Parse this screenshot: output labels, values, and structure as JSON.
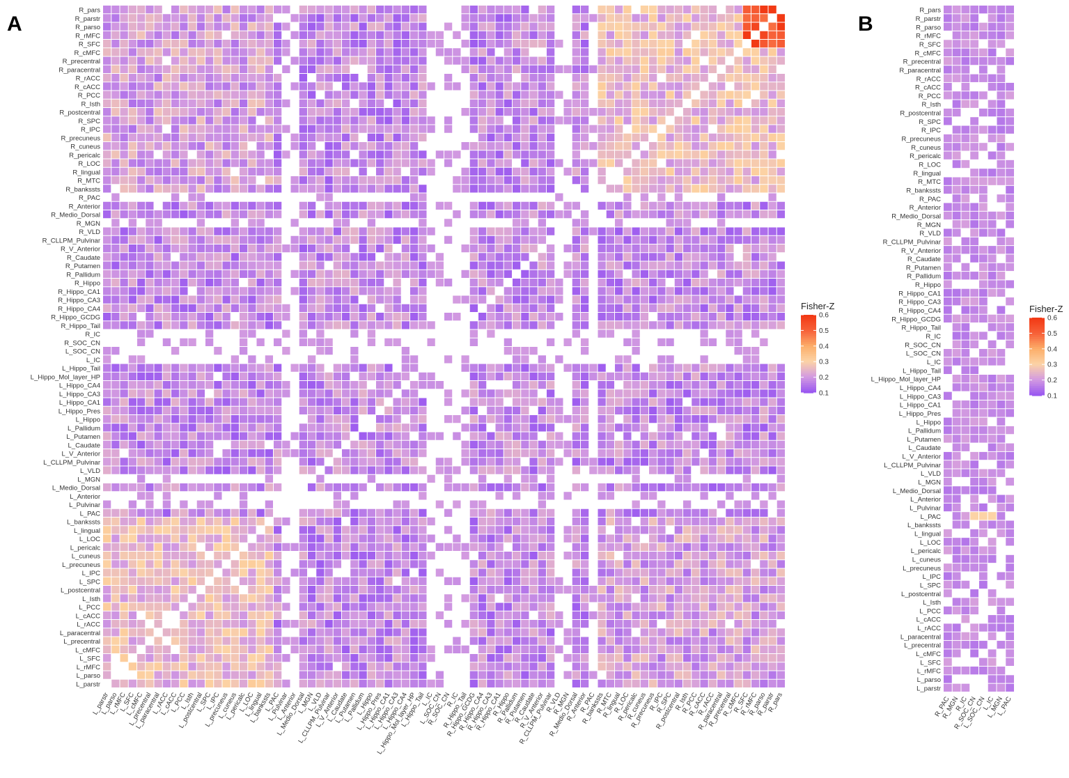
{
  "figure": {
    "panel_a_label": "A",
    "panel_b_label": "B"
  },
  "chart_data": [
    {
      "panel": "A",
      "type": "heatmap",
      "title": "",
      "xlabel": "",
      "ylabel": "",
      "color_scale": {
        "title": "Fisher-Z",
        "min": 0.1,
        "max": 0.6,
        "ticks": [
          0.6,
          0.5,
          0.4,
          0.3,
          0.2,
          0.1
        ],
        "stops": [
          "#9b59f0",
          "#d49ce0",
          "#fcd3a6",
          "#fcae6a",
          "#f7623a",
          "#f23a15"
        ]
      },
      "note": "Symmetric matrix of Fisher-Z correlations between brain regions; individual cell values estimated from color (generated approximation).",
      "rows": [
        "R_pars",
        "R_parstr",
        "R_parso",
        "R_rMFC",
        "R_SFC",
        "R_cMFC",
        "R_precentral",
        "R_paracentral",
        "R_rACC",
        "R_cACC",
        "R_PCC",
        "R_Isth",
        "R_postcentral",
        "R_SPC",
        "R_IPC",
        "R_precuneus",
        "R_cuneus",
        "R_pericalc",
        "R_LOC",
        "R_lingual",
        "R_MTC",
        "R_bankssts",
        "R_PAC",
        "R_Anterior",
        "R_Medio_Dorsal",
        "R_MGN",
        "R_VLD",
        "R_CLLPM_Pulvinar",
        "R_V_Anterior",
        "R_Caudate",
        "R_Putamen",
        "R_Pallidum",
        "R_Hippo",
        "R_Hippo_CA1",
        "R_Hippo_CA3",
        "R_Hippo_CA4",
        "R_Hippo_GCDG",
        "R_Hippo_Tail",
        "R_IC",
        "R_SOC_CN",
        "L_SOC_CN",
        "L_IC",
        "L_Hippo_Tail",
        "L_Hippo_Mol_layer_HP",
        "L_Hippo_CA4",
        "L_Hippo_CA3",
        "L_Hippo_CA1",
        "L_Hippo_Pres",
        "L_Hippo",
        "L_Pallidum",
        "L_Putamen",
        "L_Caudate",
        "L_V_Anterior",
        "L_CLLPM_Pulvinar",
        "L_VLD",
        "L_MGN",
        "L_Medio_Dorsal",
        "L_Anterior",
        "L_Pulvinar",
        "L_PAC",
        "L_bankssts",
        "L_lingual",
        "L_LOC",
        "L_pericalc",
        "L_cuneus",
        "L_precuneus",
        "L_IPC",
        "L_SPC",
        "L_postcentral",
        "L_Isth",
        "L_PCC",
        "L_cACC",
        "L_rACC",
        "L_paracentral",
        "L_precentral",
        "L_cMFC",
        "L_SFC",
        "L_rMFC",
        "L_parso",
        "L_parstr"
      ],
      "columns": [
        "L_parstr",
        "L_parso",
        "L_rMFC",
        "L_SFC",
        "L_cMFC",
        "L_precentral",
        "L_paracentral",
        "L_rACC",
        "L_cACC",
        "L_PCC",
        "L_Isth",
        "L_postcentral",
        "L_SPC",
        "L_IPC",
        "L_precuneus",
        "L_cuneus",
        "L_pericalc",
        "L_LOC",
        "L_lingual",
        "L_bankssts",
        "L_PAC",
        "L_Pulvinar",
        "L_Anterior",
        "L_Medio_Dorsal",
        "L_MGN",
        "L_VLD",
        "L_CLLPM_Pulvinar",
        "L_V_Anterior",
        "L_Caudate",
        "L_Putamen",
        "L_Pallidum",
        "L_Hippo",
        "L_Hippo_Pres",
        "L_Hippo_CA1",
        "L_Hippo_CA3",
        "L_Hippo_CA4",
        "L_Hippo_Mol_layer_HP",
        "L_Hippo_Tail",
        "L_IC",
        "L_SOC_CN",
        "R_SOC_CN",
        "R_IC",
        "R_Hippo_Tail",
        "R_Hippo_GCDG",
        "R_Hippo_CA4",
        "R_Hippo_CA3",
        "R_Hippo_CA1",
        "R_Hippo",
        "R_Pallidum",
        "R_Putamen",
        "R_Caudate",
        "R_V_Anterior",
        "R_CLLPM_Pulvinar",
        "R_VLD",
        "R_MGN",
        "R_Medio_Dorsal",
        "R_Anterior",
        "R_PAC",
        "R_bankssts",
        "R_MTC",
        "R_lingual",
        "R_LOC",
        "R_pericalc",
        "R_cuneus",
        "R_precuneus",
        "R_IPC",
        "R_SPC",
        "R_postcentral",
        "R_Isth",
        "R_PCC",
        "R_cACC",
        "R_rACC",
        "R_paracentral",
        "R_precentral",
        "R_cMFC",
        "R_SFC",
        "R_rMFC",
        "R_parso",
        "R_parstr",
        "R_pars"
      ],
      "sparse_rows": [
        "R_PAC",
        "R_MGN",
        "R_IC",
        "R_SOC_CN",
        "L_SOC_CN",
        "L_IC",
        "L_MGN",
        "L_Anterior",
        "L_Pulvinar"
      ],
      "sparse_columns": [
        "L_Pulvinar",
        "L_Anterior",
        "L_IC",
        "L_SOC_CN",
        "R_SOC_CN",
        "R_IC",
        "R_MGN",
        "R_PAC",
        "R_VLD",
        "R_Hippo_Tail"
      ]
    },
    {
      "panel": "B",
      "type": "heatmap",
      "title": "",
      "xlabel": "",
      "ylabel": "",
      "color_scale": {
        "title": "Fisher-Z",
        "min": 0.1,
        "max": 0.6,
        "ticks": [
          0.6,
          0.5,
          0.4,
          0.3,
          0.2,
          0.1
        ],
        "stops": [
          "#9b59f0",
          "#d49ce0",
          "#fcd3a6",
          "#fcae6a",
          "#f7623a",
          "#f23a15"
        ]
      },
      "note": "Subset of columns from panel A (auditory-related regions); cell values approximated.",
      "rows": [
        "R_pars",
        "R_parstr",
        "R_parso",
        "R_rMFC",
        "R_SFC",
        "R_cMFC",
        "R_precentral",
        "R_paracentral",
        "R_rACC",
        "R_cACC",
        "R_PCC",
        "R_Isth",
        "R_postcentral",
        "R_SPC",
        "R_IPC",
        "R_precuneus",
        "R_cuneus",
        "R_pericalc",
        "R_LOC",
        "R_lingual",
        "R_MTC",
        "R_bankssts",
        "R_PAC",
        "R_Anterior",
        "R_Medio_Dorsal",
        "R_MGN",
        "R_VLD",
        "R_CLLPM_Pulvinar",
        "R_V_Anterior",
        "R_Caudate",
        "R_Putamen",
        "R_Pallidum",
        "R_Hippo",
        "R_Hippo_CA1",
        "R_Hippo_CA3",
        "R_Hippo_CA4",
        "R_Hippo_GCDG",
        "R_Hippo_Tail",
        "R_IC",
        "R_SOC_CN",
        "L_SOC_CN",
        "L_IC",
        "L_Hippo_Tail",
        "L_Hippo_Mol_layer_HP",
        "L_Hippo_CA4",
        "L_Hippo_CA3",
        "L_Hippo_CA1",
        "L_Hippo_Pres",
        "L_Hippo",
        "L_Pallidum",
        "L_Putamen",
        "L_Caudate",
        "L_V_Anterior",
        "L_CLLPM_Pulvinar",
        "L_VLD",
        "L_MGN",
        "L_Medio_Dorsal",
        "L_Anterior",
        "L_Pulvinar",
        "L_PAC",
        "L_bankssts",
        "L_lingual",
        "L_LOC",
        "L_pericalc",
        "L_cuneus",
        "L_precuneus",
        "L_IPC",
        "L_SPC",
        "L_postcentral",
        "L_Isth",
        "L_PCC",
        "L_cACC",
        "L_rACC",
        "L_paracentral",
        "L_precentral",
        "L_cMFC",
        "L_SFC",
        "L_rMFC",
        "L_parso",
        "L_parstr"
      ],
      "columns": [
        "R_PAC",
        "R_MGN",
        "R_IC",
        "R_SOC_CN",
        "L_SOC_CN",
        "L_IC",
        "L_MGN",
        "L_PAC"
      ]
    }
  ]
}
